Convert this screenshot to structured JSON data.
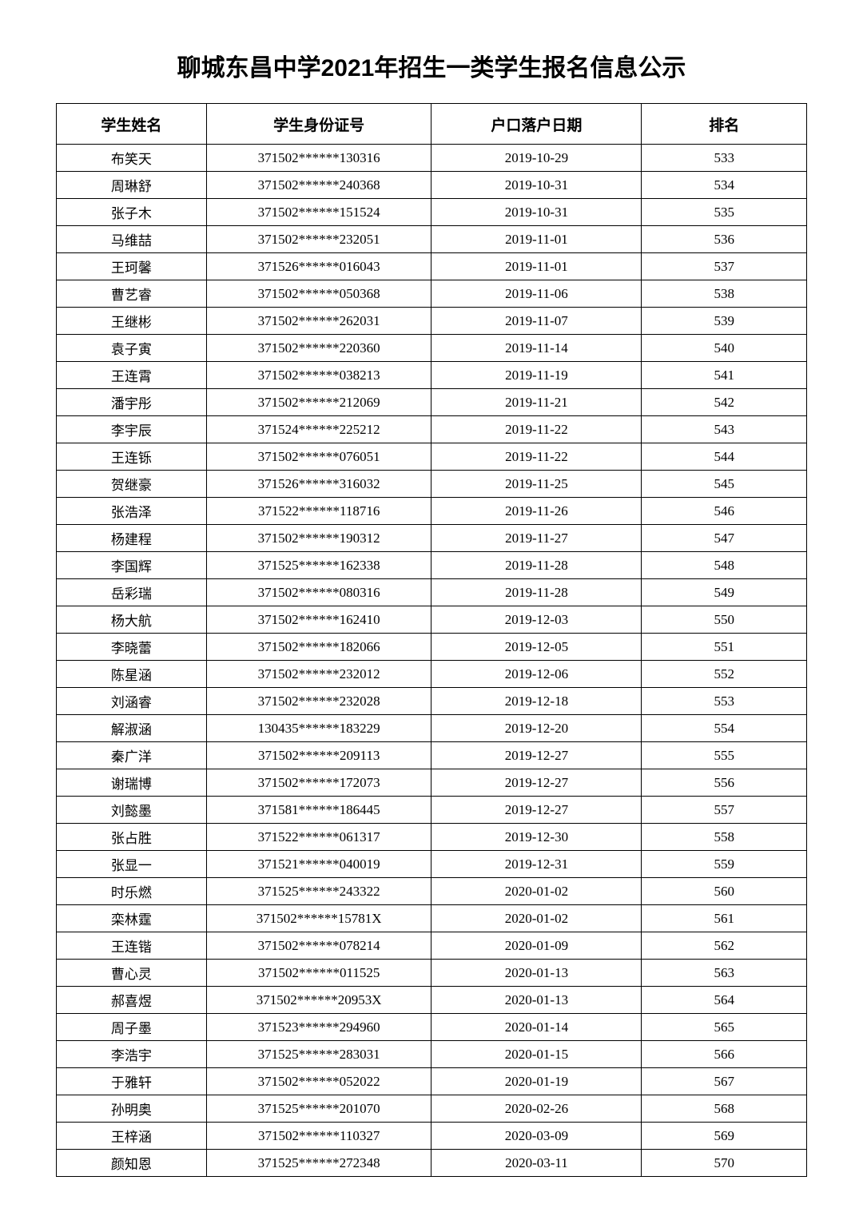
{
  "title": "聊城东昌中学2021年招生一类学生报名信息公示",
  "columns": [
    "学生姓名",
    "学生身份证号",
    "户口落户日期",
    "排名"
  ],
  "rows": [
    [
      "布笑天",
      "371502******130316",
      "2019-10-29",
      "533"
    ],
    [
      "周琳舒",
      "371502******240368",
      "2019-10-31",
      "534"
    ],
    [
      "张子木",
      "371502******151524",
      "2019-10-31",
      "535"
    ],
    [
      "马维喆",
      "371502******232051",
      "2019-11-01",
      "536"
    ],
    [
      "王珂馨",
      "371526******016043",
      "2019-11-01",
      "537"
    ],
    [
      "曹艺睿",
      "371502******050368",
      "2019-11-06",
      "538"
    ],
    [
      "王继彬",
      "371502******262031",
      "2019-11-07",
      "539"
    ],
    [
      "袁子寅",
      "371502******220360",
      "2019-11-14",
      "540"
    ],
    [
      "王连霄",
      "371502******038213",
      "2019-11-19",
      "541"
    ],
    [
      "潘宇彤",
      "371502******212069",
      "2019-11-21",
      "542"
    ],
    [
      "李宇辰",
      "371524******225212",
      "2019-11-22",
      "543"
    ],
    [
      "王连铄",
      "371502******076051",
      "2019-11-22",
      "544"
    ],
    [
      "贺继豪",
      "371526******316032",
      "2019-11-25",
      "545"
    ],
    [
      "张浩泽",
      "371522******118716",
      "2019-11-26",
      "546"
    ],
    [
      "杨建程",
      "371502******190312",
      "2019-11-27",
      "547"
    ],
    [
      "李国辉",
      "371525******162338",
      "2019-11-28",
      "548"
    ],
    [
      "岳彩瑞",
      "371502******080316",
      "2019-11-28",
      "549"
    ],
    [
      "杨大航",
      "371502******162410",
      "2019-12-03",
      "550"
    ],
    [
      "李晓蕾",
      "371502******182066",
      "2019-12-05",
      "551"
    ],
    [
      "陈星涵",
      "371502******232012",
      "2019-12-06",
      "552"
    ],
    [
      "刘涵睿",
      "371502******232028",
      "2019-12-18",
      "553"
    ],
    [
      "解淑涵",
      "130435******183229",
      "2019-12-20",
      "554"
    ],
    [
      "秦广洋",
      "371502******209113",
      "2019-12-27",
      "555"
    ],
    [
      "谢瑞博",
      "371502******172073",
      "2019-12-27",
      "556"
    ],
    [
      "刘懿墨",
      "371581******186445",
      "2019-12-27",
      "557"
    ],
    [
      "张占胜",
      "371522******061317",
      "2019-12-30",
      "558"
    ],
    [
      "张显一",
      "371521******040019",
      "2019-12-31",
      "559"
    ],
    [
      "时乐燃",
      "371525******243322",
      "2020-01-02",
      "560"
    ],
    [
      "栾林霆",
      "371502******15781X",
      "2020-01-02",
      "561"
    ],
    [
      "王连锴",
      "371502******078214",
      "2020-01-09",
      "562"
    ],
    [
      "曹心灵",
      "371502******011525",
      "2020-01-13",
      "563"
    ],
    [
      "郝喜煜",
      "371502******20953X",
      "2020-01-13",
      "564"
    ],
    [
      "周子墨",
      "371523******294960",
      "2020-01-14",
      "565"
    ],
    [
      "李浩宇",
      "371525******283031",
      "2020-01-15",
      "566"
    ],
    [
      "于雅轩",
      "371502******052022",
      "2020-01-19",
      "567"
    ],
    [
      "孙明奥",
      "371525******201070",
      "2020-02-26",
      "568"
    ],
    [
      "王梓涵",
      "371502******110327",
      "2020-03-09",
      "569"
    ],
    [
      "颜知恩",
      "371525******272348",
      "2020-03-11",
      "570"
    ]
  ],
  "style": {
    "background_color": "#ffffff",
    "border_color": "#000000",
    "text_color": "#000000",
    "title_fontsize": 30,
    "header_fontsize": 19,
    "cell_fontsize": 17,
    "column_widths_pct": [
      20,
      30,
      28,
      22
    ]
  }
}
